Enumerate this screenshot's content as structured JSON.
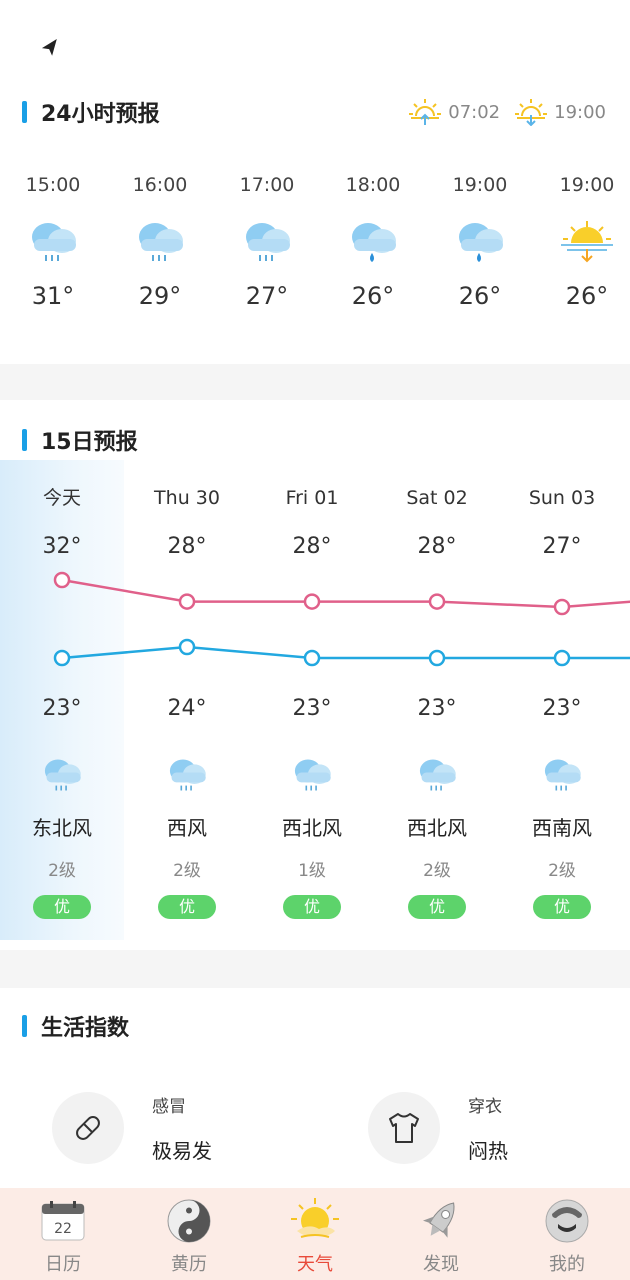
{
  "header": {
    "location_icon": "navigation-arrow-icon"
  },
  "hourly": {
    "title": "24小时预报",
    "sunrise": "07:02",
    "sunset": "19:00",
    "items": [
      {
        "time": "15:00",
        "icon": "cloud-light-rain-icon",
        "temp": "31°"
      },
      {
        "time": "16:00",
        "icon": "cloud-light-rain-icon",
        "temp": "29°"
      },
      {
        "time": "17:00",
        "icon": "cloud-light-rain-icon",
        "temp": "27°"
      },
      {
        "time": "18:00",
        "icon": "cloud-rain-drop-icon",
        "temp": "26°"
      },
      {
        "time": "19:00",
        "icon": "cloud-rain-drop-icon",
        "temp": "26°"
      },
      {
        "time": "19:00",
        "icon": "sunset-icon",
        "temp": "26°"
      }
    ]
  },
  "daily": {
    "title": "15日预报",
    "days": [
      {
        "name": "今天",
        "hi": "32°",
        "lo": "23°",
        "icon": "cloud-light-rain-icon",
        "wind": "东北风",
        "level": "2级",
        "aqi": "优"
      },
      {
        "name": "Thu 30",
        "hi": "28°",
        "lo": "24°",
        "icon": "cloud-light-rain-icon",
        "wind": "西风",
        "level": "2级",
        "aqi": "优"
      },
      {
        "name": "Fri 01",
        "hi": "28°",
        "lo": "23°",
        "icon": "cloud-light-rain-icon",
        "wind": "西北风",
        "level": "1级",
        "aqi": "优"
      },
      {
        "name": "Sat 02",
        "hi": "28°",
        "lo": "23°",
        "icon": "cloud-light-rain-icon",
        "wind": "西北风",
        "level": "2级",
        "aqi": "优"
      },
      {
        "name": "Sun 03",
        "hi": "27°",
        "lo": "23°",
        "icon": "cloud-light-rain-icon",
        "wind": "西南风",
        "level": "2级",
        "aqi": "优"
      }
    ],
    "colors": {
      "high_line": "#e0608a",
      "low_line": "#22a8e0"
    }
  },
  "life": {
    "title": "生活指数",
    "items": [
      {
        "label": "感冒",
        "value": "极易发",
        "icon": "pill-icon"
      },
      {
        "label": "穿衣",
        "value": "闷热",
        "icon": "tshirt-icon"
      }
    ]
  },
  "tabs": [
    {
      "label": "日历",
      "icon": "calendar-icon",
      "calendar_day": "22",
      "active": false
    },
    {
      "label": "黄历",
      "icon": "yin-yang-icon",
      "active": false
    },
    {
      "label": "天气",
      "icon": "sun-cloud-icon",
      "active": true
    },
    {
      "label": "发现",
      "icon": "rocket-icon",
      "active": false
    },
    {
      "label": "我的",
      "icon": "avatar-icon",
      "active": false
    }
  ]
}
